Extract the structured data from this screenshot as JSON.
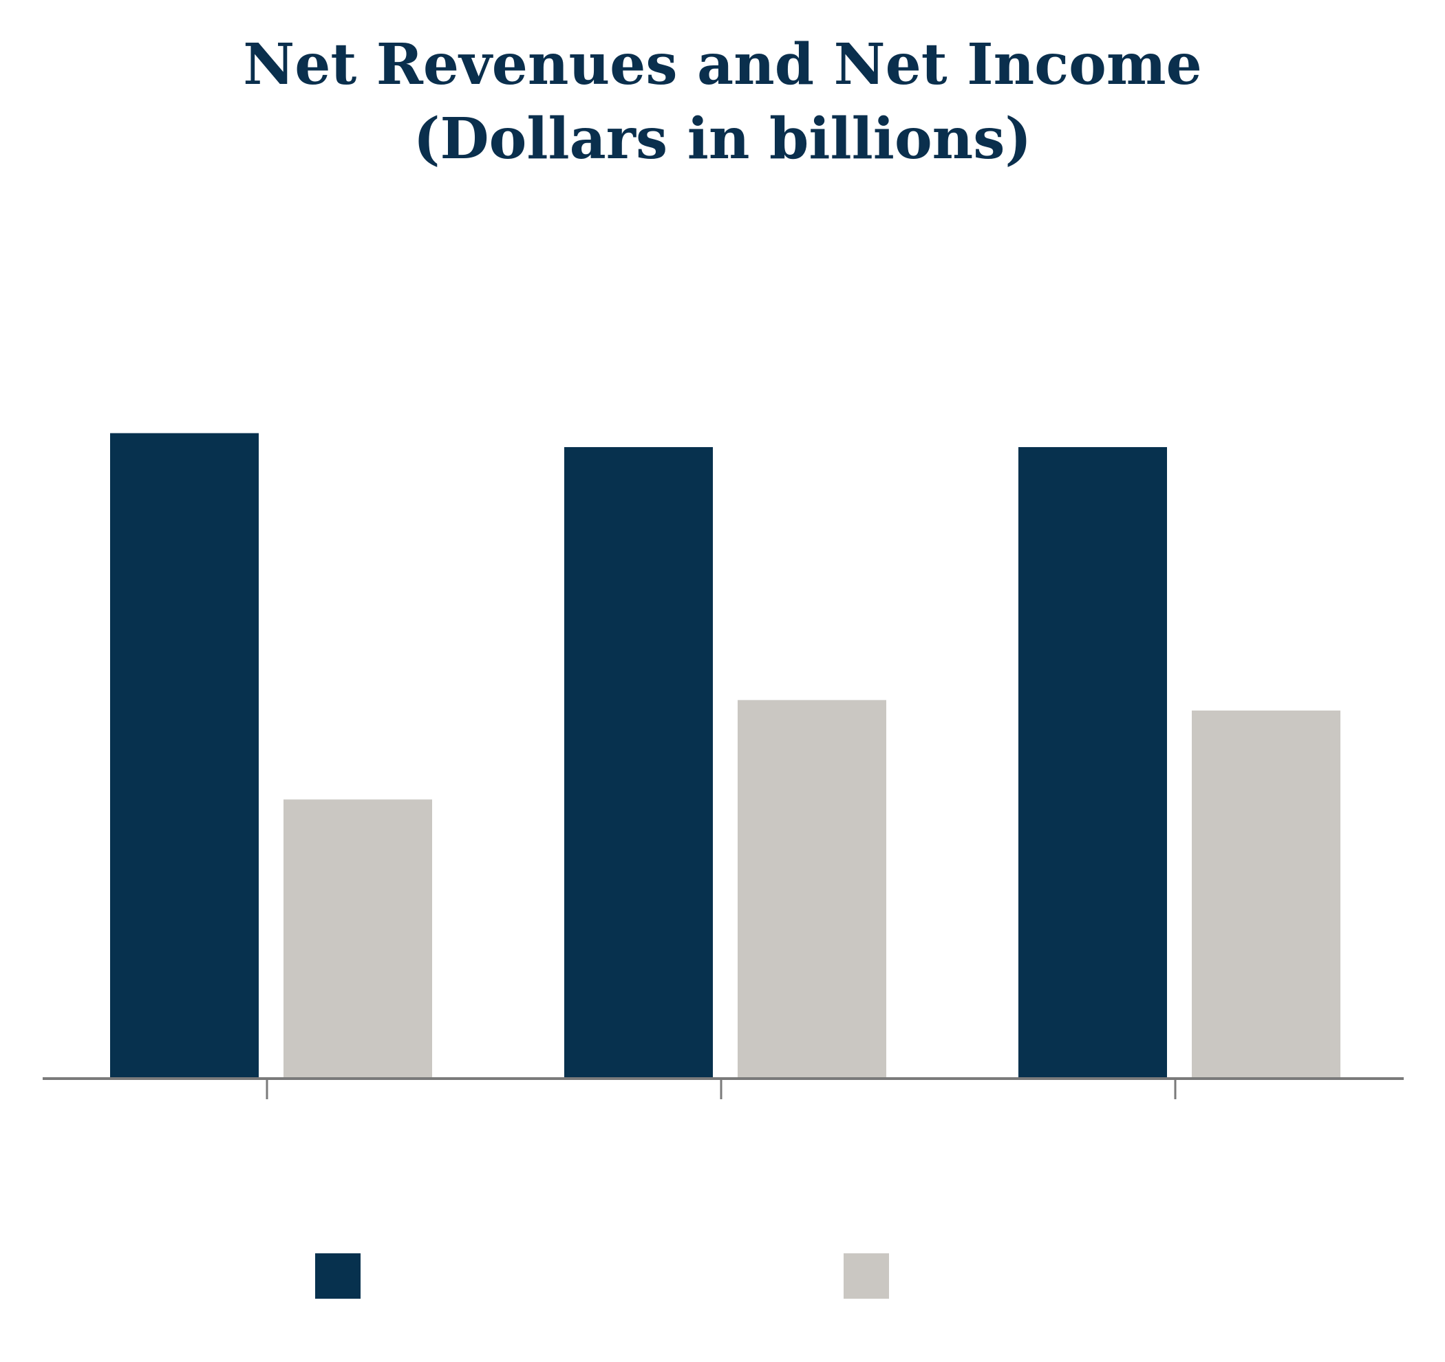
{
  "chart_data": {
    "type": "bar",
    "title": "Net Revenues and Net Income",
    "subtitle": "(Dollars in billions)",
    "categories": [
      "",
      "",
      ""
    ],
    "series": [
      {
        "values": [
          37.0,
          36.2,
          36.2
        ],
        "color": "#07314e"
      },
      {
        "values": [
          16.0,
          21.7,
          21.1
        ],
        "color": "#cac7c2"
      }
    ],
    "ylim": [
      0,
      50
    ],
    "grid": false,
    "legend_position": "bottom",
    "axis_color": "#7a7a7a"
  }
}
